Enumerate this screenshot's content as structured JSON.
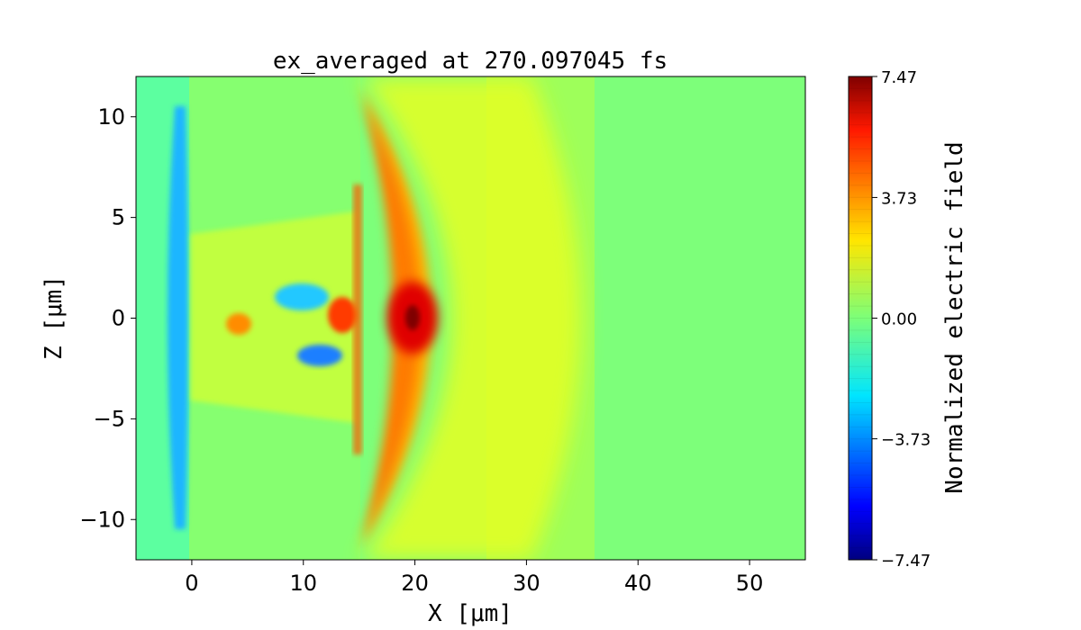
{
  "chart_data": {
    "type": "heatmap",
    "title": "ex_averaged at 270.097045 fs",
    "xlabel": "X [μm]",
    "ylabel": "Z [μm]",
    "xlim": [
      -5,
      55
    ],
    "ylim": [
      -12,
      12
    ],
    "x_ticks": [
      0,
      10,
      20,
      30,
      40,
      50
    ],
    "x_tick_labels": [
      "0",
      "10",
      "20",
      "30",
      "40",
      "50"
    ],
    "y_ticks": [
      -10,
      -5,
      0,
      5,
      10
    ],
    "y_tick_labels": [
      "−10",
      "−5",
      "0",
      "5",
      "10"
    ],
    "grid": false,
    "colormap": "jet",
    "colorbar": {
      "label": "Normalized electric field",
      "range": [
        -7.47,
        7.47
      ],
      "ticks": [
        -7.47,
        -3.73,
        0.0,
        3.73,
        7.47
      ],
      "tick_labels": [
        "−7.47",
        "−3.73",
        "0.00",
        "3.73",
        "7.47"
      ]
    },
    "features": [
      {
        "kind": "background",
        "value": 0.0
      },
      {
        "kind": "laser-pulse-arc",
        "x_center": 20,
        "z_half_extent": 11,
        "value": 4.5
      },
      {
        "kind": "peak",
        "x": 20,
        "z": 0,
        "value": 7.3
      },
      {
        "kind": "negative-column",
        "x": -1,
        "z_range": [
          -10,
          10
        ],
        "value": -3.2
      },
      {
        "kind": "turbulent-channel",
        "x_range": [
          0,
          15
        ],
        "z_range": [
          -4,
          4
        ]
      }
    ]
  }
}
